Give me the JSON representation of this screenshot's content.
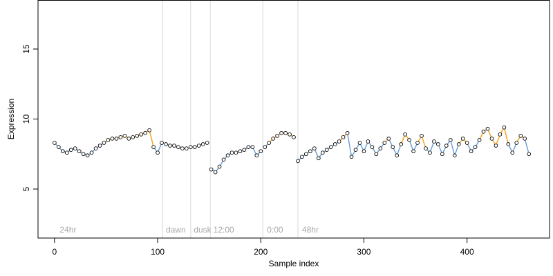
{
  "chart_data": {
    "type": "scatter",
    "title": "",
    "xlabel": "Sample index",
    "ylabel": "Expression",
    "xlim": [
      -16,
      480
    ],
    "ylim": [
      1.5,
      18.5
    ],
    "x_ticks": [
      0,
      100,
      200,
      300,
      400
    ],
    "y_ticks": [
      5,
      10,
      15
    ],
    "grid": false,
    "legend": "none",
    "section_boundaries": [
      105,
      132,
      151,
      202,
      236
    ],
    "section_labels": [
      {
        "text": "24hr",
        "x": 3
      },
      {
        "text": "dawn",
        "x": 106
      },
      {
        "text": "dusk",
        "x": 133
      },
      {
        "text": "12:00",
        "x": 152
      },
      {
        "text": "0:00",
        "x": 204
      },
      {
        "text": "48hr",
        "x": 238
      }
    ],
    "colors": {
      "line_low": "#6f9fd8",
      "line_high": "#f5a623",
      "point_fill": "#ffffff",
      "point_stroke": "#000000",
      "boundary": "#d8d8d8",
      "frame": "#000000",
      "section_text": "#a8a8a8"
    },
    "series": [
      {
        "name": "",
        "x": [
          0,
          4,
          8,
          12,
          16,
          20,
          24,
          28,
          32,
          36,
          40,
          44,
          48,
          52,
          56,
          60,
          64,
          68,
          72,
          76,
          80,
          84,
          88,
          92,
          96,
          100,
          104,
          108,
          112,
          116,
          120,
          124,
          128,
          132,
          136,
          140,
          144,
          148,
          152,
          156,
          160,
          164,
          168,
          172,
          176,
          180,
          184,
          188,
          192,
          196,
          200,
          204,
          208,
          212,
          216,
          220,
          224,
          228,
          232,
          236,
          240,
          244,
          248,
          252,
          256,
          260,
          264,
          268,
          272,
          276,
          280,
          284,
          288,
          292,
          296,
          300,
          304,
          308,
          312,
          316,
          320,
          324,
          328,
          332,
          336,
          340,
          344,
          348,
          352,
          356,
          360,
          364,
          368,
          372,
          376,
          380,
          384,
          388,
          392,
          396,
          400,
          404,
          408,
          412,
          416,
          420,
          424,
          428,
          432,
          436,
          440,
          444,
          448,
          452,
          456,
          460
        ],
        "y": [
          8.3,
          8.0,
          7.7,
          7.6,
          7.8,
          7.9,
          7.7,
          7.5,
          7.4,
          7.6,
          7.9,
          8.1,
          8.3,
          8.5,
          8.6,
          8.6,
          8.7,
          8.8,
          8.6,
          8.7,
          8.8,
          8.9,
          9.0,
          9.2,
          8.0,
          7.6,
          8.3,
          8.2,
          8.1,
          8.1,
          8.0,
          7.9,
          7.9,
          8.0,
          8.0,
          8.1,
          8.2,
          8.3,
          6.4,
          6.2,
          6.6,
          7.1,
          7.4,
          7.6,
          7.6,
          7.7,
          7.8,
          8.0,
          8.0,
          7.4,
          7.7,
          8.0,
          8.3,
          8.6,
          8.8,
          9.0,
          9.0,
          8.9,
          8.7,
          7.0,
          7.3,
          7.5,
          7.7,
          7.9,
          7.2,
          7.6,
          7.8,
          8.0,
          8.2,
          8.4,
          8.7,
          9.0,
          7.3,
          7.8,
          8.3,
          7.7,
          8.4,
          8.0,
          7.5,
          7.9,
          8.3,
          8.6,
          8.0,
          7.4,
          8.2,
          8.9,
          8.5,
          7.7,
          8.3,
          8.8,
          7.9,
          7.6,
          8.4,
          8.2,
          7.5,
          8.1,
          8.5,
          7.4,
          8.2,
          8.6,
          8.3,
          7.7,
          8.0,
          8.5,
          9.1,
          9.3,
          8.6,
          8.1,
          8.9,
          9.4,
          8.2,
          7.6,
          8.3,
          8.8,
          8.6,
          7.5
        ]
      }
    ]
  }
}
